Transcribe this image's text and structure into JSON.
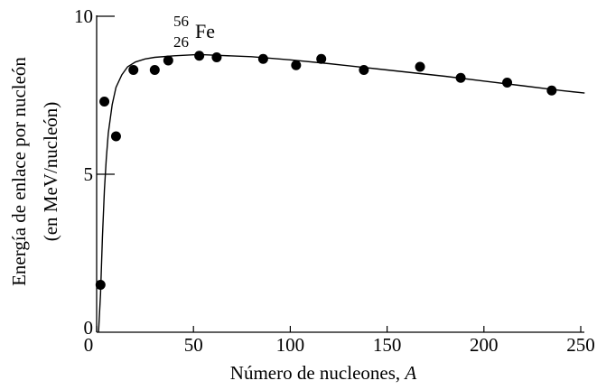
{
  "chart_data": {
    "type": "scatter",
    "xlabel": "Número de nucleones,",
    "xlabel_var": "A",
    "ylabel_line1": "Energía de enlace por nucleón",
    "ylabel_line2": "(en MeV/nucleón)",
    "xlim": [
      0,
      250
    ],
    "ylim": [
      0,
      10
    ],
    "x_ticks": [
      0,
      50,
      100,
      150,
      200,
      250
    ],
    "x_tick_labels": [
      "0",
      "50",
      "100",
      "150",
      "200",
      "250"
    ],
    "y_ticks": [
      0,
      5,
      10
    ],
    "y_tick_labels": [
      "0",
      "5",
      "10"
    ],
    "grid": false,
    "annotation": {
      "mass_number": "56",
      "atomic_number": "26",
      "symbol": "Fe"
    },
    "series": [
      {
        "type": "scatter",
        "x": [
          2,
          4,
          10,
          19,
          30,
          37,
          53,
          62,
          86,
          103,
          116,
          138,
          167,
          188,
          212,
          235
        ],
        "y": [
          1.5,
          7.3,
          6.2,
          8.3,
          8.3,
          8.6,
          8.75,
          8.7,
          8.65,
          8.45,
          8.65,
          8.3,
          8.4,
          8.05,
          7.9,
          7.65
        ]
      },
      {
        "type": "line",
        "x": [
          1,
          2,
          3,
          4,
          5,
          6,
          8,
          10,
          13,
          16,
          20,
          25,
          30,
          40,
          50,
          56,
          60,
          80,
          100,
          120,
          150,
          180,
          200,
          220,
          240,
          252
        ],
        "y": [
          0.0,
          1.2,
          3.0,
          4.5,
          5.5,
          6.3,
          7.2,
          7.75,
          8.15,
          8.4,
          8.55,
          8.65,
          8.7,
          8.75,
          8.78,
          8.78,
          8.77,
          8.72,
          8.62,
          8.5,
          8.3,
          8.1,
          7.95,
          7.8,
          7.65,
          7.57
        ]
      }
    ]
  }
}
